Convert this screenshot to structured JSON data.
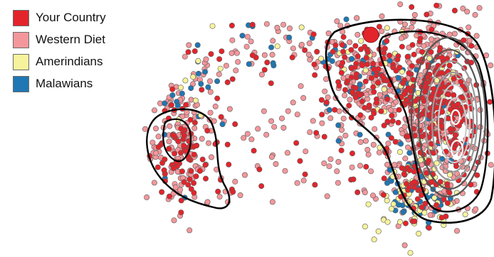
{
  "chart_data": {
    "type": "scatter",
    "title": "",
    "xlabel": "",
    "ylabel": "",
    "grid": false,
    "legend_position": "top-left",
    "series": [
      {
        "name": "Your Country",
        "color": "#e3242b"
      },
      {
        "name": "Western Diet",
        "color": "#f4979b"
      },
      {
        "name": "Amerindians",
        "color": "#f7f39c"
      },
      {
        "name": "Malawians",
        "color": "#1f77b4"
      }
    ],
    "highlight_point": {
      "series": "Your Country"
    },
    "contour_colors": [
      "#000000",
      "#555555",
      "#999999",
      "#cccccc",
      "#ffffff"
    ]
  }
}
